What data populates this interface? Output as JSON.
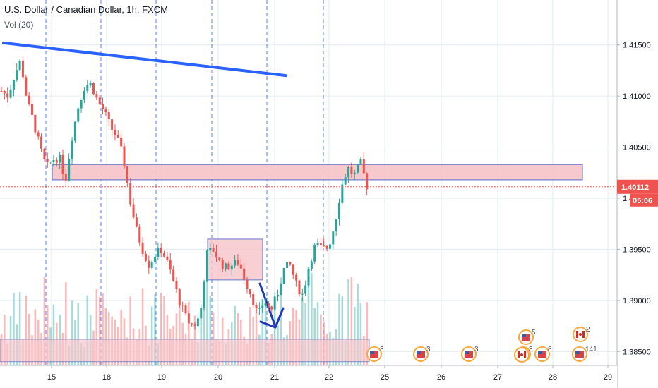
{
  "header": {
    "symbol_title": "U.S. Dollar / Canadian Dollar, 1h, FXCM",
    "volume_label": "Vol (20)"
  },
  "chart_data": {
    "type": "candlestick",
    "y_axis_ticks": [
      "1.41500",
      "1.41000",
      "1.40500",
      "1.40000",
      "1.39500",
      "1.39000",
      "1.38500"
    ],
    "y_range": [
      1.3835,
      1.4185
    ],
    "x_axis_ticks": [
      "15",
      "18",
      "19",
      "20",
      "21",
      "22",
      "25",
      "26",
      "27",
      "28",
      "29"
    ],
    "last_price": "1.40112",
    "countdown": "05:06",
    "price_path": [
      1.4105,
      1.41,
      1.412,
      1.4135,
      1.4095,
      1.4075,
      1.405,
      1.403,
      1.4038,
      1.404,
      1.4018,
      1.406,
      1.409,
      1.411,
      1.4112,
      1.4095,
      1.4085,
      1.407,
      1.406,
      1.404,
      1.4,
      1.397,
      1.395,
      1.3935,
      1.3945,
      1.395,
      1.3935,
      1.3915,
      1.3895,
      1.388,
      1.3875,
      1.3885,
      1.3945,
      1.395,
      1.3938,
      1.3932,
      1.3935,
      1.3938,
      1.392,
      1.3905,
      1.3885,
      1.39,
      1.389,
      1.3905,
      1.393,
      1.3935,
      1.3915,
      1.3905,
      1.3935,
      1.3955,
      1.395,
      1.3952,
      1.3975,
      1.401,
      1.403,
      1.4022,
      1.4035,
      1.4012
    ],
    "events": [
      {
        "type": "usd",
        "count": "3"
      },
      {
        "type": "usd",
        "count": "3"
      },
      {
        "type": "usd",
        "count": "3"
      },
      {
        "type": "usd",
        "count": "3"
      },
      {
        "type": "usd",
        "count": "5"
      },
      {
        "type": "cad",
        "count": ""
      },
      {
        "type": "usd",
        "count": "8"
      },
      {
        "type": "usd",
        "count": "141"
      },
      {
        "type": "cad",
        "count": "2"
      }
    ],
    "drawings": [
      {
        "type": "trend-line",
        "color": "#2962ff",
        "from": [
          1.4152,
          "14"
        ],
        "to": [
          1.412,
          "21"
        ]
      },
      {
        "type": "rectangle",
        "fill": "#f7c7cb",
        "price_top": 1.4033,
        "price_bottom": 1.4018
      },
      {
        "type": "rectangle",
        "fill": "#f7c7cb",
        "price_top": 1.396,
        "price_bottom": 1.392
      },
      {
        "type": "rectangle",
        "fill": "#f7c7cb",
        "price_top": 1.3862,
        "price_bottom": 1.384
      },
      {
        "type": "arrow",
        "color": "#1e3ab8"
      }
    ],
    "colors": {
      "up": "#26a69a",
      "down": "#ef5350",
      "price_label": "#ef5350",
      "grid": "#e1ecf2",
      "session_line": "#2962ff"
    },
    "grid": true,
    "legend": "none"
  }
}
